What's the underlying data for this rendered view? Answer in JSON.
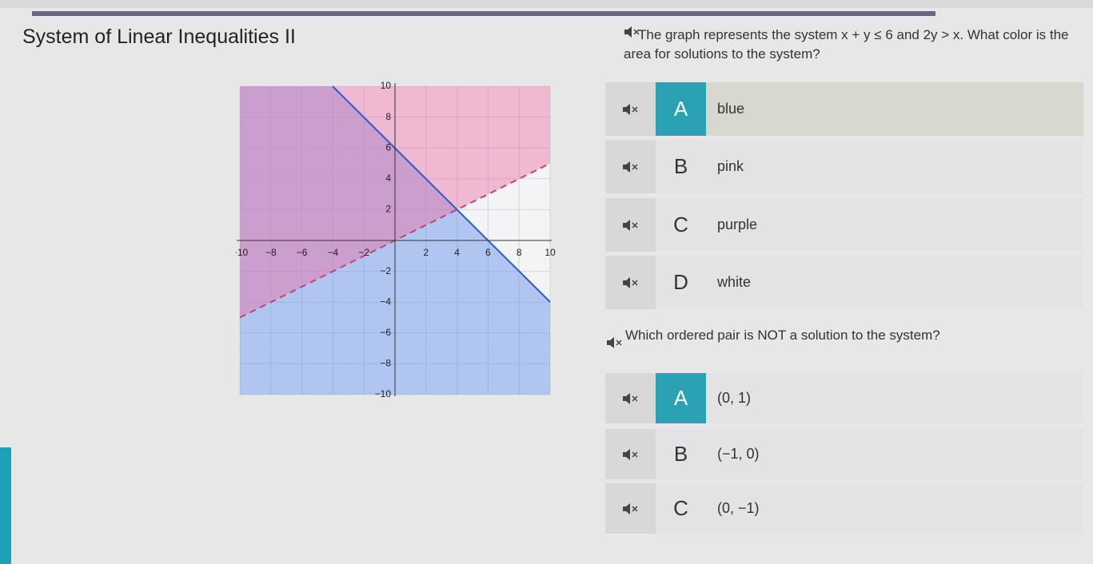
{
  "header": {
    "title": "System of Linear Inequalities II"
  },
  "question1": {
    "text": "The graph represents the system x + y ≤ 6 and 2y > x. What color is the area for solutions to the system?",
    "options": [
      {
        "letter": "A",
        "text": "blue"
      },
      {
        "letter": "B",
        "text": "pink"
      },
      {
        "letter": "C",
        "text": "purple"
      },
      {
        "letter": "D",
        "text": "white"
      }
    ]
  },
  "question2": {
    "text": "Which ordered pair is NOT a solution to the system?",
    "options": [
      {
        "letter": "A",
        "text": "(0, 1)"
      },
      {
        "letter": "B",
        "text": "(−1, 0)"
      },
      {
        "letter": "C",
        "text": "(0, −1)"
      }
    ]
  },
  "graph": {
    "xticks": [
      {
        "value": -10,
        "label": "−10"
      },
      {
        "value": -8,
        "label": "−8"
      },
      {
        "value": -6,
        "label": "−6"
      },
      {
        "value": -4,
        "label": "−4"
      },
      {
        "value": -2,
        "label": "−2"
      },
      2,
      4,
      6,
      8,
      10
    ],
    "yticks": [
      10,
      8,
      6,
      4,
      2,
      {
        "value": -2,
        "label": "−2"
      },
      {
        "value": -4,
        "label": "−4"
      },
      {
        "value": -6,
        "label": "−6"
      },
      {
        "value": -8,
        "label": "−8"
      },
      {
        "value": -10,
        "label": "−10"
      }
    ]
  }
}
